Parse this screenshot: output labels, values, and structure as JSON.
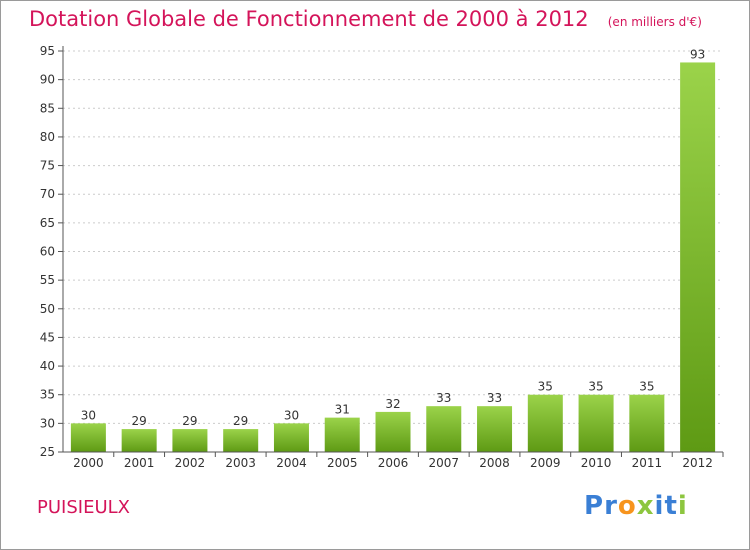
{
  "title": "Dotation Globale de Fonctionnement de 2000 à 2012",
  "unit": "(en milliers d'€)",
  "commune": "PUISIEULX",
  "logo": {
    "letters": [
      {
        "char": "P",
        "color": "#3a7fd5"
      },
      {
        "char": "r",
        "color": "#3a7fd5"
      },
      {
        "char": "o",
        "color": "#f7941d"
      },
      {
        "char": "x",
        "color": "#8dc63f"
      },
      {
        "char": "i",
        "color": "#3a7fd5"
      },
      {
        "char": "t",
        "color": "#3a7fd5"
      },
      {
        "char": "i",
        "color": "#8dc63f"
      }
    ]
  },
  "colors": {
    "title": "#d4145a",
    "bar_top": "#9bd34a",
    "bar_bottom": "#5e9a14",
    "grid": "#cccccc"
  },
  "chart_data": {
    "type": "bar",
    "categories": [
      "2000",
      "2001",
      "2002",
      "2003",
      "2004",
      "2005",
      "2006",
      "2007",
      "2008",
      "2009",
      "2010",
      "2011",
      "2012"
    ],
    "values": [
      30,
      29,
      29,
      29,
      30,
      31,
      32,
      33,
      33,
      35,
      35,
      35,
      93
    ],
    "ylim": [
      25,
      95
    ],
    "yticks": [
      25,
      30,
      35,
      40,
      45,
      50,
      55,
      60,
      65,
      70,
      75,
      80,
      85,
      90,
      95
    ],
    "grid": true,
    "data_labels": true
  }
}
